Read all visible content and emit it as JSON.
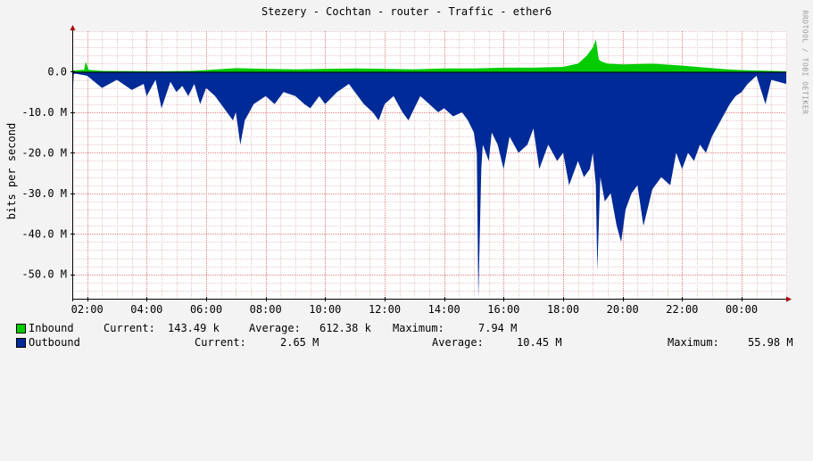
{
  "chart_data": {
    "type": "area",
    "title": "Stezery - Cochtan - router - Traffic - ether6",
    "ylabel": "bits per second",
    "watermark": "RRDTOOL / TOBI OETIKER",
    "ylim": [
      -56000000,
      10000000
    ],
    "yticks": [
      {
        "value": 0,
        "label": "0.0"
      },
      {
        "value": -10000000,
        "label": "-10.0 M"
      },
      {
        "value": -20000000,
        "label": "-20.0 M"
      },
      {
        "value": -30000000,
        "label": "-30.0 M"
      },
      {
        "value": -40000000,
        "label": "-40.0 M"
      },
      {
        "value": -50000000,
        "label": "-50.0 M"
      }
    ],
    "xrange_hours": [
      1.5,
      25.5
    ],
    "xticks": [
      {
        "value": 2,
        "label": "02:00"
      },
      {
        "value": 4,
        "label": "04:00"
      },
      {
        "value": 6,
        "label": "06:00"
      },
      {
        "value": 8,
        "label": "08:00"
      },
      {
        "value": 10,
        "label": "10:00"
      },
      {
        "value": 12,
        "label": "12:00"
      },
      {
        "value": 14,
        "label": "14:00"
      },
      {
        "value": 16,
        "label": "16:00"
      },
      {
        "value": 18,
        "label": "18:00"
      },
      {
        "value": 20,
        "label": "20:00"
      },
      {
        "value": 22,
        "label": "22:00"
      },
      {
        "value": 24,
        "label": "00:00"
      }
    ],
    "grid": true,
    "series": [
      {
        "name": "Inbound",
        "color": "#00cc00",
        "x": [
          1.5,
          1.9,
          1.95,
          2.05,
          2.5,
          4.5,
          5.5,
          6.0,
          7.0,
          8.0,
          9.0,
          10.0,
          11.0,
          12.0,
          13.0,
          14.0,
          15.0,
          16.0,
          17.0,
          18.0,
          18.5,
          18.8,
          19.0,
          19.1,
          19.2,
          19.3,
          19.5,
          20.0,
          21.0,
          22.0,
          23.0,
          23.5,
          24.0,
          25.0,
          25.5
        ],
        "values": [
          300000,
          500000,
          2500000,
          500000,
          200000,
          100000,
          200000,
          400000,
          900000,
          700000,
          600000,
          700000,
          800000,
          700000,
          600000,
          800000,
          800000,
          1000000,
          1000000,
          1200000,
          2000000,
          4000000,
          6000000,
          7940000,
          3000000,
          2500000,
          2000000,
          1800000,
          2000000,
          1500000,
          900000,
          600000,
          400000,
          200000,
          100000
        ]
      },
      {
        "name": "Outbound",
        "color": "#002a97",
        "x": [
          1.5,
          1.55,
          1.65,
          2.0,
          2.5,
          3.0,
          3.5,
          3.9,
          4.0,
          4.3,
          4.5,
          4.8,
          5.0,
          5.2,
          5.4,
          5.6,
          5.8,
          6.0,
          6.3,
          6.6,
          6.9,
          7.0,
          7.15,
          7.3,
          7.6,
          8.0,
          8.3,
          8.6,
          9.0,
          9.3,
          9.5,
          9.8,
          10.0,
          10.4,
          10.8,
          11.0,
          11.3,
          11.6,
          11.8,
          12.0,
          12.3,
          12.6,
          12.8,
          13.0,
          13.2,
          13.5,
          13.8,
          14.0,
          14.3,
          14.6,
          14.8,
          15.0,
          15.1,
          15.15,
          15.25,
          15.3,
          15.5,
          15.6,
          15.8,
          16.0,
          16.2,
          16.5,
          16.8,
          17.0,
          17.2,
          17.5,
          17.8,
          18.0,
          18.2,
          18.5,
          18.7,
          18.9,
          19.0,
          19.1,
          19.15,
          19.25,
          19.4,
          19.6,
          19.8,
          19.95,
          20.1,
          20.3,
          20.5,
          20.7,
          20.9,
          21.0,
          21.3,
          21.6,
          21.8,
          22.0,
          22.2,
          22.4,
          22.6,
          22.8,
          23.0,
          23.3,
          23.6,
          23.8,
          24.0,
          24.2,
          24.5,
          24.8,
          25.0,
          25.5
        ],
        "values": [
          -7000000,
          -500000,
          -500000,
          -1000000,
          -4000000,
          -2000000,
          -4500000,
          -3000000,
          -6000000,
          -2000000,
          -9000000,
          -2500000,
          -5000000,
          -3500000,
          -6000000,
          -3000000,
          -8000000,
          -4000000,
          -6000000,
          -9000000,
          -12000000,
          -10000000,
          -18000000,
          -12000000,
          -8000000,
          -6000000,
          -8000000,
          -5000000,
          -6000000,
          -8000000,
          -9000000,
          -6000000,
          -8000000,
          -5000000,
          -3000000,
          -5000000,
          -8000000,
          -10000000,
          -12000000,
          -8000000,
          -6000000,
          -10000000,
          -12000000,
          -9000000,
          -6000000,
          -8000000,
          -10000000,
          -9000000,
          -11000000,
          -10000000,
          -12000000,
          -15000000,
          -20000000,
          -56000000,
          -24000000,
          -18000000,
          -22000000,
          -15000000,
          -18000000,
          -24000000,
          -16000000,
          -20000000,
          -18000000,
          -14000000,
          -24000000,
          -18000000,
          -22000000,
          -20000000,
          -28000000,
          -22000000,
          -26000000,
          -24000000,
          -20000000,
          -28000000,
          -49000000,
          -26000000,
          -32000000,
          -30000000,
          -38000000,
          -42000000,
          -34000000,
          -30000000,
          -28000000,
          -38000000,
          -32000000,
          -29000000,
          -26000000,
          -28000000,
          -20000000,
          -24000000,
          -20000000,
          -22000000,
          -18000000,
          -20000000,
          -16000000,
          -12000000,
          -8000000,
          -6000000,
          -5000000,
          -3000000,
          -1000000,
          -8000000,
          -2000000,
          -3000000
        ]
      }
    ]
  },
  "legend": {
    "inbound": {
      "label": "Inbound",
      "color": "#00cc00",
      "current_label": "Current:",
      "current": "143.49 k",
      "average_label": "Average:",
      "average": "612.38 k",
      "maximum_label": "Maximum:",
      "maximum": "7.94 M"
    },
    "outbound": {
      "label": "Outbound",
      "color": "#002a97",
      "current_label": "Current:",
      "current": "2.65 M",
      "average_label": "Average:",
      "average": "10.45 M",
      "maximum_label": "Maximum:",
      "maximum": "55.98 M"
    }
  }
}
